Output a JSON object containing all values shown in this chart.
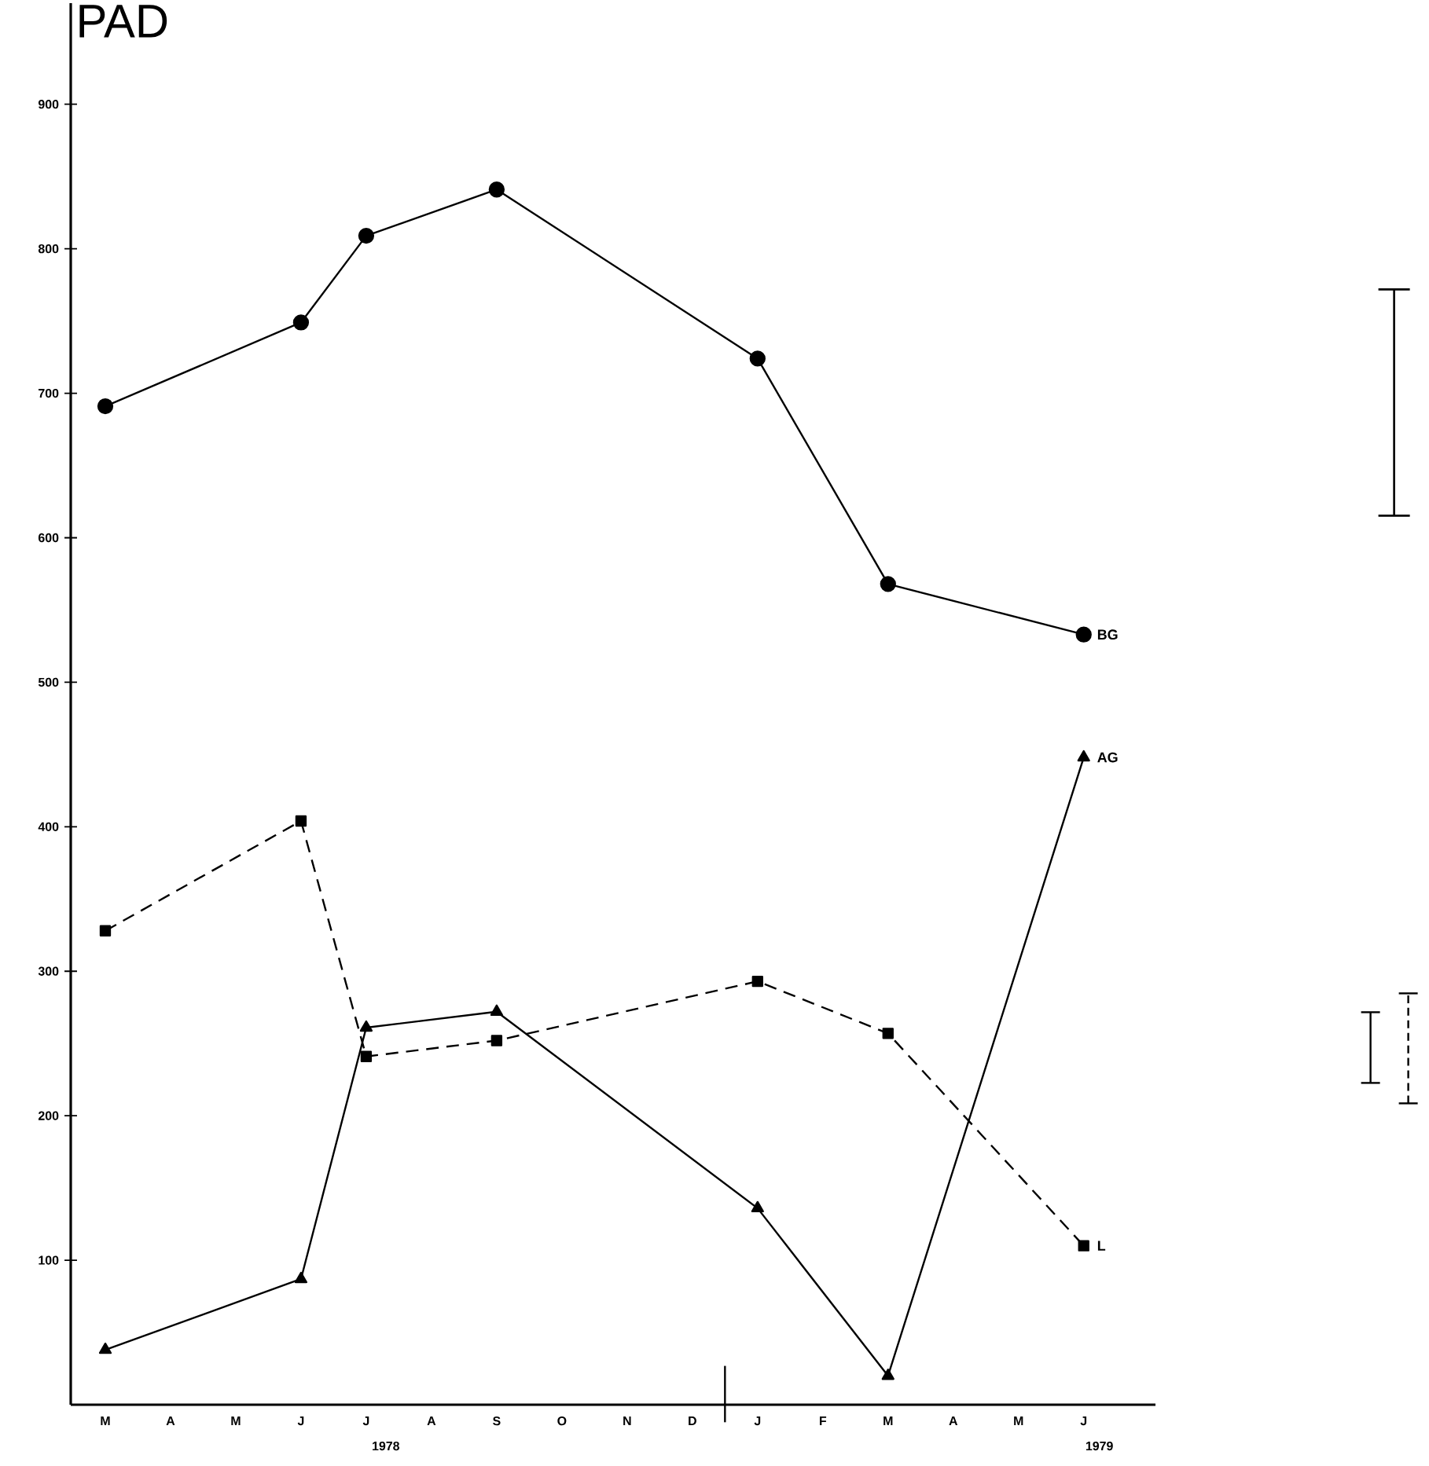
{
  "chart_data": {
    "type": "line",
    "title": "PAD",
    "categories": [
      "M",
      "A",
      "M",
      "J",
      "J",
      "A",
      "S",
      "O",
      "N",
      "D",
      "J",
      "F",
      "M",
      "A",
      "M",
      "J"
    ],
    "ylim": [
      0,
      970
    ],
    "yticks": [
      100,
      200,
      300,
      400,
      500,
      600,
      700,
      800,
      900
    ],
    "grid": false,
    "annotations": [
      "1978",
      "1979"
    ],
    "series": [
      {
        "name": "BG",
        "color": "#000000",
        "marker": "circle",
        "line_style": "solid",
        "values": [
          691,
          null,
          null,
          749,
          809,
          null,
          841,
          null,
          null,
          null,
          724,
          null,
          568,
          null,
          null,
          533
        ]
      },
      {
        "name": "AG",
        "color": "#000000",
        "marker": "triangle",
        "line_style": "solid",
        "values": [
          38,
          null,
          null,
          87,
          261,
          null,
          272,
          null,
          null,
          null,
          136,
          null,
          20,
          null,
          null,
          448
        ]
      },
      {
        "name": "L",
        "color": "#000000",
        "marker": "square",
        "line_style": "dashed",
        "values": [
          328,
          null,
          null,
          404,
          241,
          null,
          252,
          null,
          null,
          null,
          293,
          null,
          257,
          null,
          null,
          110
        ]
      }
    ]
  }
}
